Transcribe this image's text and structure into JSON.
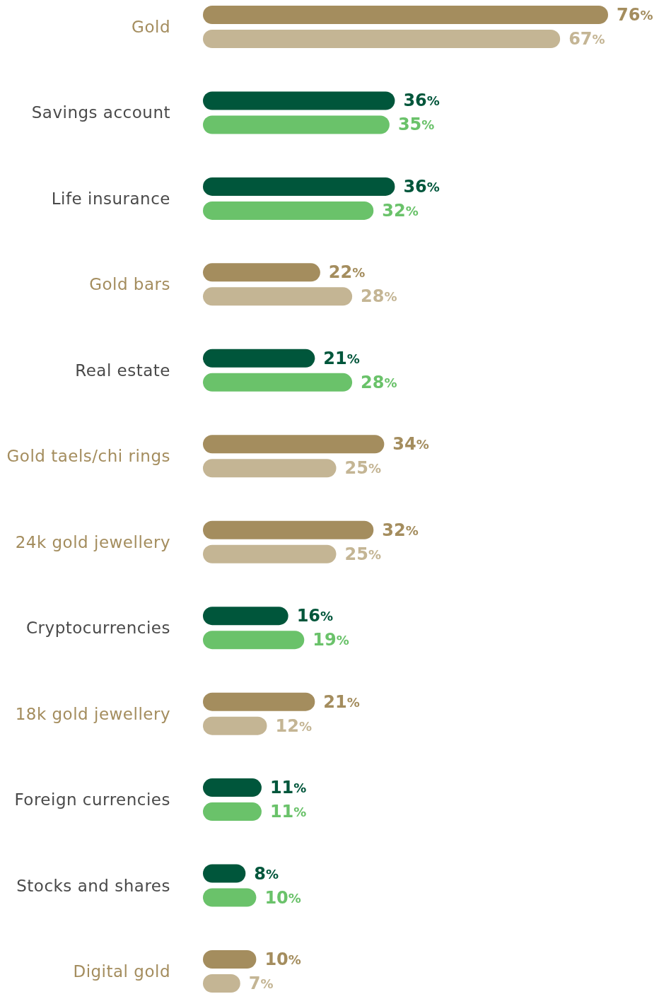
{
  "chart_data": {
    "type": "bar",
    "orientation": "horizontal",
    "categories": [
      "Gold",
      "Savings account",
      "Life insurance",
      "Gold bars",
      "Real estate",
      "Gold taels/chi rings",
      "24k gold jewellery",
      "Cryptocurrencies",
      "18k gold jewellery",
      "Foreign currencies",
      "Stocks and shares",
      "Digital gold"
    ],
    "series": [
      {
        "values": [
          76,
          36,
          36,
          22,
          21,
          34,
          32,
          16,
          21,
          11,
          8,
          10
        ],
        "colors": [
          "#a48d5e",
          "#00563b",
          "#00563b",
          "#a48d5e",
          "#00563b",
          "#a48d5e",
          "#a48d5e",
          "#00563b",
          "#a48d5e",
          "#00563b",
          "#00563b",
          "#a48d5e"
        ],
        "value_labels": [
          "76%",
          "36%",
          "36%",
          "22%",
          "21%",
          "34%",
          "32%",
          "16%",
          "21%",
          "11%",
          "8%",
          "10%"
        ]
      },
      {
        "values": [
          67,
          35,
          32,
          28,
          28,
          25,
          25,
          19,
          12,
          11,
          10,
          7
        ],
        "colors": [
          "#c4b594",
          "#6ac26a",
          "#6ac26a",
          "#c4b594",
          "#6ac26a",
          "#c4b594",
          "#c4b594",
          "#6ac26a",
          "#c4b594",
          "#6ac26a",
          "#6ac26a",
          "#c4b594"
        ],
        "value_labels": [
          "67%",
          "35%",
          "32%",
          "28%",
          "28%",
          "25%",
          "25%",
          "19%",
          "12%",
          "11%",
          "10%",
          "7%"
        ]
      }
    ]
  }
}
